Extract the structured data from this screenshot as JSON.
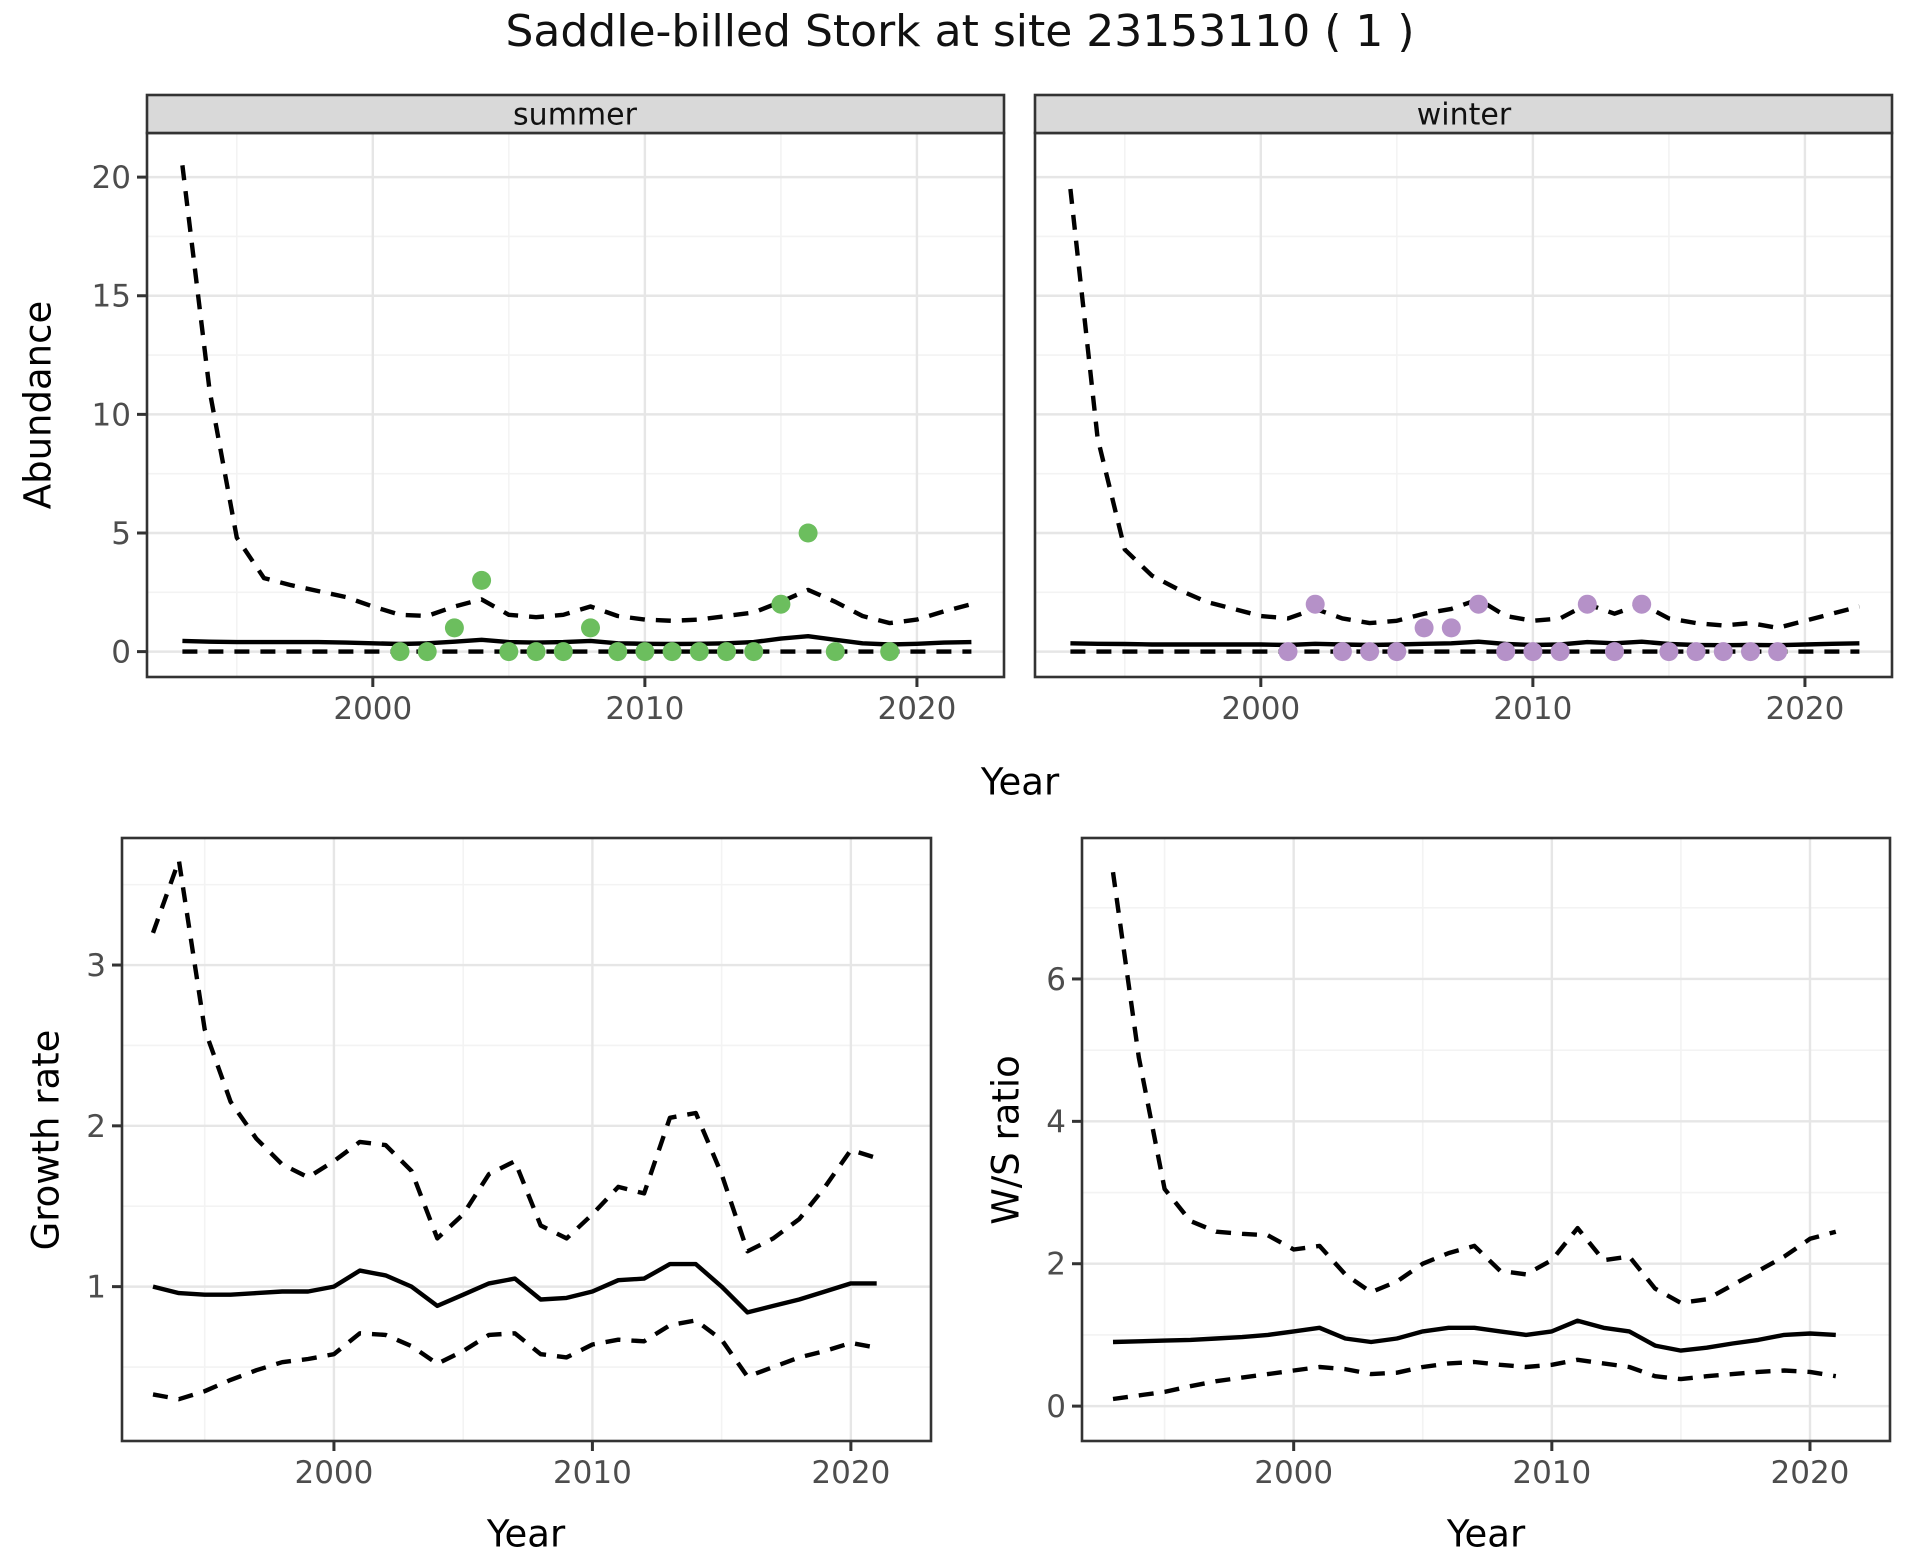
{
  "title": "Saddle-billed Stork at site 23153110 ( 1 )",
  "labels": {
    "abundance": "Abundance",
    "year_top": "Year",
    "growth_rate": "Growth rate",
    "ws_ratio": "W/S ratio",
    "year_growth": "Year",
    "year_ws": "Year"
  },
  "colors": {
    "summer_point": "#6cbe5e",
    "winter_point": "#b591c8",
    "line": "#000000",
    "strip_bg": "#d9d9d9",
    "panel_bg": "#ffffff",
    "grid_major": "#e6e6e6",
    "grid_minor": "#f3f3f3",
    "panel_border": "#333333",
    "tick_mark": "#333333",
    "tick_text": "#4d4d4d"
  },
  "chart_data": [
    {
      "type": "line",
      "facet": "summer",
      "title": "summer",
      "xlabel": "Year",
      "ylabel": "Abundance",
      "xlim": [
        1991.7,
        2023.2
      ],
      "ylim": [
        -1.07,
        21.86
      ],
      "x_ticks": [
        2000,
        2010,
        2020
      ],
      "x_minor": [
        1995,
        2005,
        2015
      ],
      "y_ticks": [
        0,
        5,
        10,
        15,
        20
      ],
      "y_minor": [
        2.5,
        7.5,
        12.5,
        17.5
      ],
      "grid": true,
      "legend": "none",
      "line_years": [
        1993,
        1994,
        1995,
        1996,
        1997,
        1998,
        1999,
        2000,
        2001,
        2002,
        2003,
        2004,
        2005,
        2006,
        2007,
        2008,
        2009,
        2010,
        2011,
        2012,
        2013,
        2014,
        2015,
        2016,
        2017,
        2018,
        2019,
        2020,
        2021,
        2022
      ],
      "series": [
        {
          "name": "upper_ci",
          "style": "dashed",
          "values": [
            20.5,
            11.0,
            4.8,
            3.1,
            2.8,
            2.55,
            2.3,
            1.9,
            1.55,
            1.5,
            1.9,
            2.2,
            1.55,
            1.45,
            1.55,
            1.9,
            1.5,
            1.35,
            1.3,
            1.35,
            1.5,
            1.65,
            2.1,
            2.6,
            2.1,
            1.5,
            1.2,
            1.35,
            1.7,
            2.0
          ]
        },
        {
          "name": "median",
          "style": "solid",
          "values": [
            0.45,
            0.42,
            0.4,
            0.4,
            0.4,
            0.4,
            0.38,
            0.35,
            0.32,
            0.35,
            0.42,
            0.5,
            0.4,
            0.38,
            0.4,
            0.45,
            0.35,
            0.33,
            0.32,
            0.33,
            0.35,
            0.4,
            0.55,
            0.65,
            0.5,
            0.35,
            0.3,
            0.33,
            0.38,
            0.4
          ]
        },
        {
          "name": "lower_ci",
          "style": "dashed",
          "values": [
            0,
            0,
            0,
            0,
            0,
            0,
            0,
            0,
            0,
            0,
            0,
            0,
            0,
            0,
            0,
            0,
            0,
            0,
            0,
            0,
            0,
            0,
            0,
            0,
            0,
            0,
            0,
            0,
            0,
            0
          ]
        }
      ],
      "points": {
        "name": "observed_counts",
        "years": [
          2001,
          2002,
          2003,
          2004,
          2005,
          2006,
          2007,
          2008,
          2009,
          2010,
          2011,
          2012,
          2013,
          2014,
          2015,
          2016,
          2017,
          2019
        ],
        "values": [
          0,
          0,
          1,
          3,
          0,
          0,
          0,
          1,
          0,
          0,
          0,
          0,
          0,
          0,
          2,
          5,
          0,
          0
        ],
        "color_key": "summer_point"
      }
    },
    {
      "type": "line",
      "facet": "winter",
      "title": "winter",
      "xlabel": "Year",
      "ylabel": "Abundance",
      "xlim": [
        1991.7,
        2023.2
      ],
      "ylim": [
        -1.07,
        21.86
      ],
      "x_ticks": [
        2000,
        2010,
        2020
      ],
      "x_minor": [
        1995,
        2005,
        2015
      ],
      "y_ticks": [
        0,
        5,
        10,
        15,
        20
      ],
      "y_minor": [
        2.5,
        7.5,
        12.5,
        17.5
      ],
      "grid": true,
      "legend": "none",
      "line_years": [
        1993,
        1994,
        1995,
        1996,
        1997,
        1998,
        1999,
        2000,
        2001,
        2002,
        2003,
        2004,
        2005,
        2006,
        2007,
        2008,
        2009,
        2010,
        2011,
        2012,
        2013,
        2014,
        2015,
        2016,
        2017,
        2018,
        2019,
        2020,
        2021,
        2022
      ],
      "series": [
        {
          "name": "upper_ci",
          "style": "dashed",
          "values": [
            19.5,
            9.0,
            4.3,
            3.2,
            2.6,
            2.1,
            1.8,
            1.5,
            1.4,
            1.8,
            1.4,
            1.2,
            1.3,
            1.6,
            1.8,
            2.2,
            1.5,
            1.3,
            1.4,
            2.0,
            1.6,
            2.0,
            1.4,
            1.2,
            1.1,
            1.2,
            1.0,
            1.3,
            1.6,
            1.9
          ]
        },
        {
          "name": "median",
          "style": "solid",
          "values": [
            0.35,
            0.33,
            0.32,
            0.3,
            0.3,
            0.3,
            0.3,
            0.3,
            0.28,
            0.33,
            0.3,
            0.28,
            0.3,
            0.33,
            0.35,
            0.42,
            0.32,
            0.28,
            0.3,
            0.4,
            0.35,
            0.42,
            0.32,
            0.28,
            0.27,
            0.28,
            0.27,
            0.3,
            0.33,
            0.35
          ]
        },
        {
          "name": "lower_ci",
          "style": "dashed",
          "values": [
            0,
            0,
            0,
            0,
            0,
            0,
            0,
            0,
            0,
            0,
            0,
            0,
            0,
            0,
            0,
            0,
            0,
            0,
            0,
            0,
            0,
            0,
            0,
            0,
            0,
            0,
            0,
            0,
            0,
            0
          ]
        }
      ],
      "points": {
        "name": "observed_counts",
        "years": [
          2001,
          2002,
          2003,
          2004,
          2005,
          2006,
          2007,
          2008,
          2009,
          2010,
          2011,
          2012,
          2013,
          2014,
          2015,
          2016,
          2017,
          2018,
          2019
        ],
        "values": [
          0,
          2,
          0,
          0,
          0,
          1,
          1,
          2,
          0,
          0,
          0,
          2,
          0,
          2,
          0,
          0,
          0,
          0,
          0
        ],
        "color_key": "winter_point"
      }
    },
    {
      "type": "line",
      "facet": "growth",
      "title": "",
      "xlabel": "Year",
      "ylabel": "Growth rate",
      "xlim": [
        1991.8,
        2023.1
      ],
      "ylim": [
        0.04,
        3.79
      ],
      "x_ticks": [
        2000,
        2010,
        2020
      ],
      "x_minor": [
        1995,
        2005,
        2015
      ],
      "y_ticks": [
        1,
        2,
        3
      ],
      "y_minor": [
        0.5,
        1.5,
        2.5,
        3.5
      ],
      "grid": true,
      "legend": "none",
      "line_years": [
        1993,
        1994,
        1995,
        1996,
        1997,
        1998,
        1999,
        2000,
        2001,
        2002,
        2003,
        2004,
        2005,
        2006,
        2007,
        2008,
        2009,
        2010,
        2011,
        2012,
        2013,
        2014,
        2015,
        2016,
        2017,
        2018,
        2019,
        2020,
        2021
      ],
      "series": [
        {
          "name": "upper_ci",
          "style": "dashed",
          "values": [
            3.2,
            3.65,
            2.6,
            2.15,
            1.92,
            1.76,
            1.68,
            1.78,
            1.9,
            1.88,
            1.72,
            1.3,
            1.45,
            1.7,
            1.78,
            1.38,
            1.3,
            1.45,
            1.62,
            1.58,
            2.05,
            2.08,
            1.7,
            1.22,
            1.3,
            1.42,
            1.62,
            1.85,
            1.8
          ]
        },
        {
          "name": "median",
          "style": "solid",
          "values": [
            1.0,
            0.96,
            0.95,
            0.95,
            0.96,
            0.97,
            0.97,
            1.0,
            1.1,
            1.07,
            1.0,
            0.88,
            0.95,
            1.02,
            1.05,
            0.92,
            0.93,
            0.97,
            1.04,
            1.05,
            1.14,
            1.14,
            1.0,
            0.84,
            0.88,
            0.92,
            0.97,
            1.02,
            1.02
          ]
        },
        {
          "name": "lower_ci",
          "style": "dashed",
          "values": [
            0.33,
            0.3,
            0.35,
            0.42,
            0.48,
            0.53,
            0.55,
            0.58,
            0.71,
            0.7,
            0.63,
            0.52,
            0.6,
            0.7,
            0.71,
            0.58,
            0.56,
            0.64,
            0.67,
            0.66,
            0.76,
            0.79,
            0.67,
            0.44,
            0.5,
            0.56,
            0.6,
            0.65,
            0.62
          ]
        }
      ],
      "points": null
    },
    {
      "type": "line",
      "facet": "ws_ratio",
      "title": "",
      "xlabel": "Year",
      "ylabel": "W/S ratio",
      "xlim": [
        1991.8,
        2023.1
      ],
      "ylim": [
        -0.49,
        7.98
      ],
      "x_ticks": [
        2000,
        2010,
        2020
      ],
      "x_minor": [
        1995,
        2005,
        2015
      ],
      "y_ticks": [
        0,
        2,
        4,
        6
      ],
      "y_minor": [
        1,
        3,
        5,
        7
      ],
      "grid": true,
      "legend": "none",
      "line_years": [
        1993,
        1994,
        1995,
        1996,
        1997,
        1998,
        1999,
        2000,
        2001,
        2002,
        2003,
        2004,
        2005,
        2006,
        2007,
        2008,
        2009,
        2010,
        2011,
        2012,
        2013,
        2014,
        2015,
        2016,
        2017,
        2018,
        2019,
        2020,
        2021
      ],
      "series": [
        {
          "name": "upper_ci",
          "style": "dashed",
          "values": [
            7.5,
            4.9,
            3.05,
            2.6,
            2.45,
            2.42,
            2.4,
            2.2,
            2.25,
            1.85,
            1.6,
            1.75,
            2.0,
            2.15,
            2.25,
            1.9,
            1.85,
            2.05,
            2.5,
            2.05,
            2.1,
            1.65,
            1.45,
            1.5,
            1.7,
            1.9,
            2.1,
            2.35,
            2.45
          ]
        },
        {
          "name": "median",
          "style": "solid",
          "values": [
            0.9,
            0.91,
            0.92,
            0.93,
            0.95,
            0.97,
            1.0,
            1.05,
            1.1,
            0.95,
            0.9,
            0.95,
            1.05,
            1.1,
            1.1,
            1.05,
            1.0,
            1.05,
            1.2,
            1.1,
            1.05,
            0.85,
            0.78,
            0.82,
            0.88,
            0.93,
            1.0,
            1.02,
            1.0
          ]
        },
        {
          "name": "lower_ci",
          "style": "dashed",
          "values": [
            0.1,
            0.15,
            0.2,
            0.28,
            0.35,
            0.4,
            0.45,
            0.5,
            0.55,
            0.52,
            0.45,
            0.47,
            0.55,
            0.6,
            0.62,
            0.58,
            0.55,
            0.58,
            0.65,
            0.6,
            0.55,
            0.42,
            0.38,
            0.42,
            0.45,
            0.48,
            0.5,
            0.48,
            0.42
          ]
        }
      ],
      "points": null
    }
  ]
}
